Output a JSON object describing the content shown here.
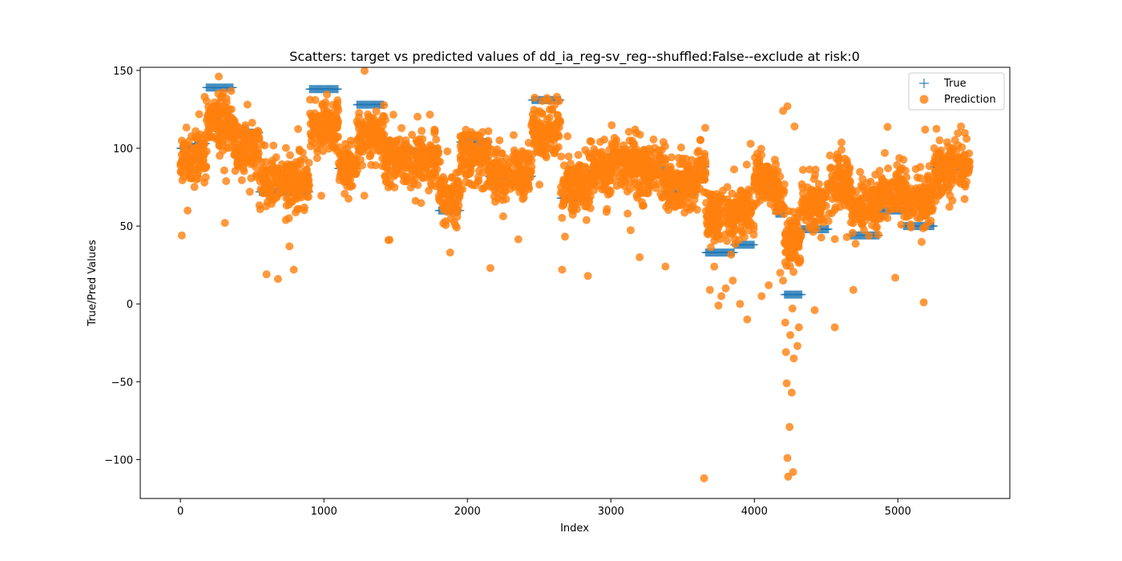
{
  "chart_data": {
    "type": "scatter",
    "title": "Scatters: target vs predicted values of dd_ia_reg-sv_reg--shuffled:False--exclude at risk:0",
    "xlabel": "Index",
    "ylabel": "True/Pred Values",
    "xlim": [
      -280,
      5780
    ],
    "ylim": [
      -125,
      152
    ],
    "x_ticks": [
      0,
      1000,
      2000,
      3000,
      4000,
      5000
    ],
    "y_ticks": [
      -100,
      -50,
      0,
      50,
      100,
      150
    ],
    "x_tick_labels": [
      "0",
      "1000",
      "2000",
      "3000",
      "4000",
      "5000"
    ],
    "y_tick_labels": [
      "−100",
      "−50",
      "0",
      "50",
      "100",
      "150"
    ],
    "grid": false,
    "legend_position": "top-right",
    "colors": {
      "true": "#1f77b4",
      "prediction": "#ff7f0e"
    },
    "series": [
      {
        "name": "True",
        "marker": "plus",
        "segments": [
          {
            "x_start": 0,
            "x_end": 100,
            "y": 100
          },
          {
            "x_start": 100,
            "x_end": 180,
            "y": 103
          },
          {
            "x_start": 180,
            "x_end": 370,
            "y": 139
          },
          {
            "x_start": 370,
            "x_end": 550,
            "y": 110
          },
          {
            "x_start": 550,
            "x_end": 900,
            "y": 72
          },
          {
            "x_start": 900,
            "x_end": 1100,
            "y": 138
          },
          {
            "x_start": 1100,
            "x_end": 1230,
            "y": 87
          },
          {
            "x_start": 1230,
            "x_end": 1420,
            "y": 128
          },
          {
            "x_start": 1420,
            "x_end": 1800,
            "y": 98
          },
          {
            "x_start": 1800,
            "x_end": 1950,
            "y": 60
          },
          {
            "x_start": 1950,
            "x_end": 2150,
            "y": 104
          },
          {
            "x_start": 2150,
            "x_end": 2450,
            "y": 82
          },
          {
            "x_start": 2450,
            "x_end": 2650,
            "y": 131
          },
          {
            "x_start": 2650,
            "x_end": 2850,
            "y": 68
          },
          {
            "x_start": 2850,
            "x_end": 3000,
            "y": 84
          },
          {
            "x_start": 3000,
            "x_end": 3180,
            "y": 96
          },
          {
            "x_start": 3180,
            "x_end": 3380,
            "y": 86
          },
          {
            "x_start": 3380,
            "x_end": 3600,
            "y": 72
          },
          {
            "x_start": 3600,
            "x_end": 3660,
            "y": 88
          },
          {
            "x_start": 3660,
            "x_end": 3860,
            "y": 33
          },
          {
            "x_start": 3860,
            "x_end": 4000,
            "y": 38
          },
          {
            "x_start": 4000,
            "x_end": 4150,
            "y": 77
          },
          {
            "x_start": 4150,
            "x_end": 4210,
            "y": 58
          },
          {
            "x_start": 4210,
            "x_end": 4330,
            "y": 6
          },
          {
            "x_start": 4330,
            "x_end": 4520,
            "y": 48
          },
          {
            "x_start": 4520,
            "x_end": 4670,
            "y": 75
          },
          {
            "x_start": 4670,
            "x_end": 4870,
            "y": 44
          },
          {
            "x_start": 4870,
            "x_end": 5040,
            "y": 60
          },
          {
            "x_start": 5040,
            "x_end": 5250,
            "y": 50
          },
          {
            "x_start": 5250,
            "x_end": 5500,
            "y": 88
          }
        ]
      },
      {
        "name": "Prediction",
        "marker": "circle",
        "outliers": [
          [
            10,
            44
          ],
          [
            50,
            60
          ],
          [
            300,
            136
          ],
          [
            260,
            125
          ],
          [
            600,
            19
          ],
          [
            680,
            16
          ],
          [
            760,
            37
          ],
          [
            790,
            22
          ],
          [
            940,
            131
          ],
          [
            930,
            113
          ],
          [
            1450,
            41
          ],
          [
            1880,
            33
          ],
          [
            2160,
            23
          ],
          [
            2610,
            128
          ],
          [
            2660,
            22
          ],
          [
            2840,
            18
          ],
          [
            3200,
            30
          ],
          [
            3380,
            24
          ],
          [
            3650,
            -112
          ],
          [
            3690,
            9
          ],
          [
            3750,
            -1
          ],
          [
            3800,
            10
          ],
          [
            3850,
            15
          ],
          [
            3900,
            0
          ],
          [
            3950,
            -10
          ],
          [
            4050,
            5
          ],
          [
            4100,
            12
          ],
          [
            4200,
            124
          ],
          [
            4230,
            127
          ],
          [
            4280,
            114
          ],
          [
            4215,
            -12
          ],
          [
            4220,
            -31
          ],
          [
            4225,
            -51
          ],
          [
            4230,
            -99
          ],
          [
            4235,
            -111
          ],
          [
            4245,
            -79
          ],
          [
            4260,
            -57
          ],
          [
            4270,
            -108
          ],
          [
            4275,
            -35
          ],
          [
            4300,
            -27
          ],
          [
            4310,
            -15
          ],
          [
            4250,
            -20
          ],
          [
            4265,
            -3
          ],
          [
            4420,
            -4
          ],
          [
            4560,
            -15
          ],
          [
            5180,
            1
          ],
          [
            5190,
            112
          ],
          [
            5440,
            114
          ],
          [
            4690,
            9
          ],
          [
            3720,
            24
          ],
          [
            3770,
            5
          ],
          [
            4180,
            20
          ],
          [
            4200,
            15
          ]
        ]
      }
    ]
  }
}
